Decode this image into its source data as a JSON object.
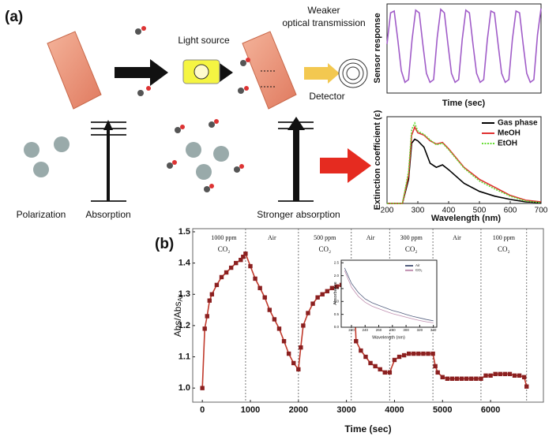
{
  "diagram": {
    "panel_a": "(a)",
    "light_source": "Light source",
    "weaker_1": "Weaker",
    "weaker_2": "optical transmission",
    "detector": "Detector",
    "polarization": "Polarization",
    "absorption": "Absorption",
    "stronger_absorption": "Stronger absorption",
    "panel_b": "(b)"
  },
  "chart_data": [
    {
      "type": "line",
      "y_label": "Sensor response",
      "x_label": "Time (sec)",
      "ylim": [
        0,
        1
      ],
      "series": [
        {
          "name": "Sensor response",
          "color": "#a05cc8",
          "values": [
            0.55,
            0.9,
            0.92,
            0.6,
            0.25,
            0.12,
            0.15,
            0.6,
            0.93,
            0.9,
            0.55,
            0.22,
            0.12,
            0.15,
            0.62,
            0.94,
            0.9,
            0.55,
            0.22,
            0.12,
            0.15,
            0.6,
            0.93,
            0.9,
            0.55,
            0.22,
            0.12,
            0.15,
            0.6,
            0.92,
            0.9,
            0.55,
            0.22,
            0.12,
            0.15,
            0.6,
            0.92,
            0.9,
            0.55,
            0.22,
            0.12,
            0.15,
            0.65,
            0.95
          ]
        }
      ]
    },
    {
      "type": "line",
      "y_label": "Extinction coefficient (ε)",
      "x_label": "Wavelength (nm)",
      "x": [
        200,
        250,
        270,
        280,
        290,
        300,
        320,
        340,
        360,
        380,
        400,
        450,
        500,
        550,
        600,
        650,
        700
      ],
      "xlim": [
        200,
        700
      ],
      "xticks": [
        200,
        300,
        400,
        500,
        600,
        700
      ],
      "ylim": [
        0,
        1.08
      ],
      "legend": "upper-right",
      "series": [
        {
          "name": "Gas phase",
          "color": "#000000",
          "values": [
            0,
            0,
            0.3,
            0.75,
            0.8,
            0.78,
            0.7,
            0.5,
            0.45,
            0.48,
            0.42,
            0.25,
            0.15,
            0.09,
            0.05,
            0.02,
            0.01
          ]
        },
        {
          "name": "MeOH",
          "color": "#e03030",
          "values": [
            0,
            0,
            0.35,
            0.85,
            0.95,
            0.88,
            0.85,
            0.78,
            0.74,
            0.76,
            0.68,
            0.45,
            0.3,
            0.2,
            0.1,
            0.04,
            0.02
          ]
        },
        {
          "name": "EtOH",
          "color": "#66dd33",
          "dash": true,
          "values": [
            0,
            0,
            0.4,
            0.92,
            1.0,
            0.9,
            0.86,
            0.79,
            0.73,
            0.75,
            0.67,
            0.44,
            0.28,
            0.18,
            0.09,
            0.03,
            0.01
          ]
        }
      ]
    },
    {
      "type": "line",
      "markers": "square",
      "x_label": "Time (sec)",
      "y_label": "Abs/Abs",
      "y_label_sub": "Air",
      "xlim": [
        -200,
        7100
      ],
      "xticks": [
        0,
        1000,
        2000,
        3000,
        4000,
        5000,
        6000
      ],
      "ylim": [
        0.955,
        1.51
      ],
      "yticks": [
        {
          "value": 1.0,
          "label": "1.0"
        },
        1.1,
        1.2,
        1.3,
        1.4,
        {
          "value": 1.5,
          "label": "1.5"
        }
      ],
      "dividers": [
        900,
        2000,
        3100,
        3900,
        4800,
        5800,
        6750
      ],
      "annotations": [
        {
          "text": "1000 ppm",
          "gas": "CO₂"
        },
        {
          "text": "Air"
        },
        {
          "text": "500 ppm",
          "gas": "CO₂"
        },
        {
          "text": "Air"
        },
        {
          "text": "300 ppm",
          "gas": "CO₂"
        },
        {
          "text": "Air"
        },
        {
          "text": "100 ppm",
          "gas": "CO₂"
        }
      ],
      "x": [
        0,
        50,
        100,
        150,
        200,
        300,
        400,
        500,
        600,
        700,
        800,
        850,
        900,
        1000,
        1100,
        1200,
        1300,
        1400,
        1500,
        1600,
        1700,
        1800,
        1900,
        2000,
        2050,
        2100,
        2200,
        2300,
        2400,
        2500,
        2600,
        2700,
        2800,
        2900,
        3000,
        3100,
        3150,
        3200,
        3300,
        3400,
        3500,
        3600,
        3700,
        3800,
        3900,
        4000,
        4100,
        4200,
        4300,
        4400,
        4500,
        4600,
        4700,
        4800,
        4850,
        4900,
        5000,
        5100,
        5200,
        5300,
        5400,
        5500,
        5600,
        5700,
        5800,
        5900,
        6000,
        6100,
        6200,
        6300,
        6400,
        6500,
        6600,
        6700,
        6750
      ],
      "series": [
        {
          "name": "Abs/Abs",
          "color": "#c0392b",
          "values": [
            1.0,
            1.19,
            1.23,
            1.28,
            1.3,
            1.33,
            1.355,
            1.37,
            1.385,
            1.4,
            1.41,
            1.42,
            1.43,
            1.39,
            1.35,
            1.32,
            1.29,
            1.25,
            1.22,
            1.19,
            1.15,
            1.11,
            1.08,
            1.06,
            1.13,
            1.2,
            1.24,
            1.27,
            1.29,
            1.3,
            1.31,
            1.32,
            1.325,
            1.33,
            1.335,
            1.34,
            1.34,
            1.15,
            1.12,
            1.1,
            1.08,
            1.07,
            1.06,
            1.05,
            1.05,
            1.09,
            1.1,
            1.105,
            1.11,
            1.11,
            1.11,
            1.11,
            1.11,
            1.11,
            1.07,
            1.05,
            1.035,
            1.03,
            1.03,
            1.03,
            1.03,
            1.03,
            1.03,
            1.03,
            1.03,
            1.04,
            1.04,
            1.045,
            1.045,
            1.045,
            1.045,
            1.04,
            1.04,
            1.035,
            1.005
          ]
        }
      ]
    },
    {
      "type": "line",
      "x_label": "Wavelength (nm)",
      "y_label": "Absorbance",
      "x": [
        210,
        220,
        230,
        240,
        250,
        260,
        270,
        280,
        290,
        300,
        310,
        320,
        330,
        340
      ],
      "xlim": [
        205,
        345
      ],
      "xticks": [
        220,
        240,
        260,
        280,
        300,
        320,
        340
      ],
      "ylim": [
        0,
        2.6
      ],
      "yticks": [
        {
          "value": 0,
          "label": "0.0"
        },
        0.5,
        {
          "value": 1,
          "label": "1.0"
        },
        1.5,
        {
          "value": 2,
          "label": "2.0"
        },
        2.5
      ],
      "legend": "upper-right",
      "series": [
        {
          "name": "Air",
          "color": "#556080",
          "values": [
            2.3,
            1.7,
            1.35,
            1.1,
            0.95,
            0.85,
            0.75,
            0.65,
            0.58,
            0.5,
            0.42,
            0.36,
            0.3,
            0.25
          ]
        },
        {
          "name": "CO₂",
          "color": "#c090b0",
          "values": [
            2.2,
            1.55,
            1.2,
            0.97,
            0.82,
            0.72,
            0.62,
            0.53,
            0.46,
            0.39,
            0.32,
            0.26,
            0.21,
            0.17
          ]
        }
      ]
    }
  ]
}
